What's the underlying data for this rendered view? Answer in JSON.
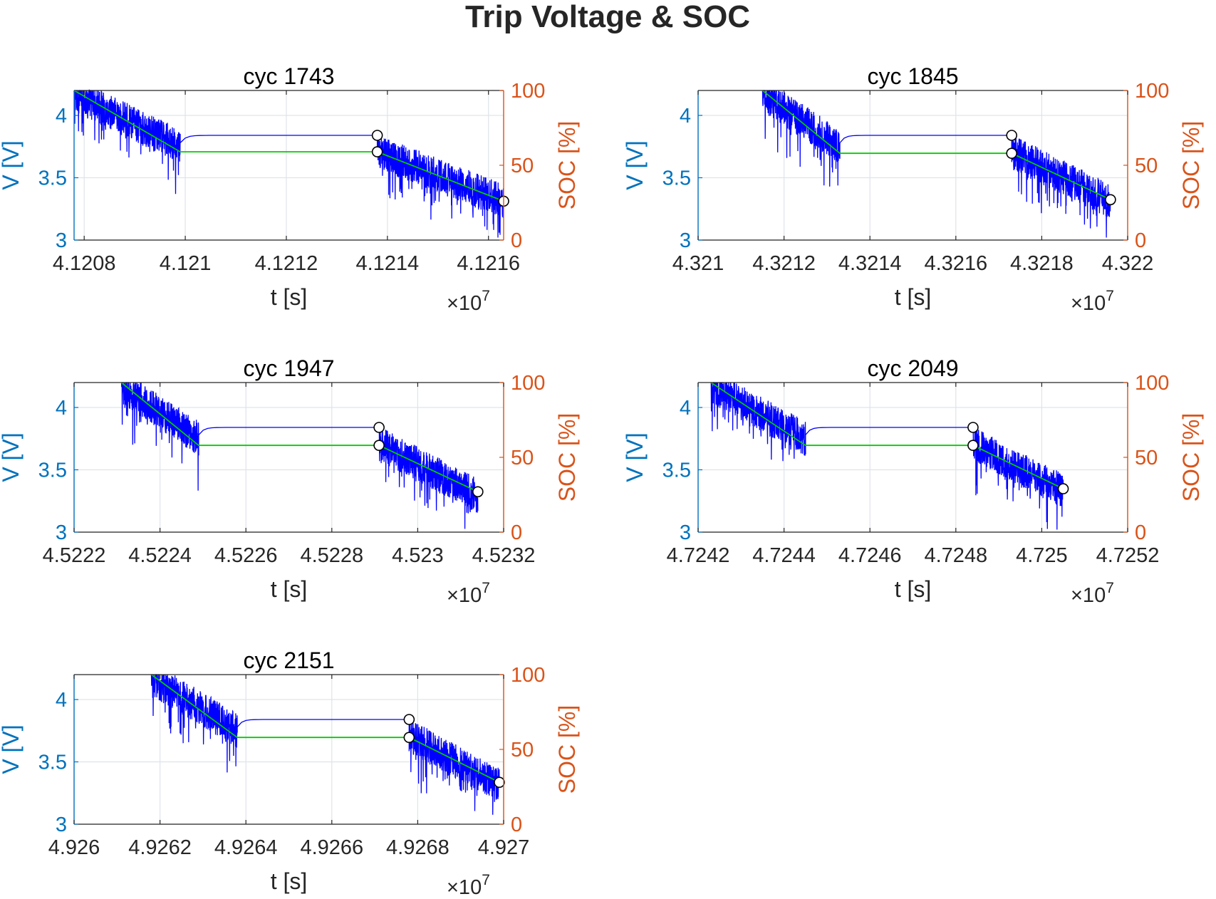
{
  "figure": {
    "title": "Trip Voltage & SOC"
  },
  "colors": {
    "voltage": "#0000ff",
    "soc": "#00cc00",
    "left_axis": "#0072bd",
    "right_axis": "#d95319",
    "grid": "#dfe3ea",
    "marker_fill": "#ffffff",
    "marker_edge": "#000000"
  },
  "chart_data": [
    {
      "type": "line",
      "title": "cyc 1743",
      "xlabel": "t [s]",
      "ylabel_left": "V [V]",
      "ylabel_right": "SOC [%]",
      "x_exponent": "×10",
      "x_exponent_power": "7",
      "xlim": [
        4.12078,
        4.12163
      ],
      "xticks": [
        4.1208,
        4.121,
        4.1212,
        4.1214,
        4.1216
      ],
      "xtick_labels": [
        "4.1208",
        "4.121",
        "4.1212",
        "4.1214",
        "4.1216"
      ],
      "ylim_left": [
        3,
        4.2
      ],
      "yticks_left": [
        3,
        3.5,
        4
      ],
      "ytick_labels_left": [
        "3",
        "3.5",
        "4"
      ],
      "ylim_right": [
        0,
        100
      ],
      "yticks_right": [
        0,
        50,
        100
      ],
      "ytick_labels_right": [
        "0",
        "50",
        "100"
      ],
      "grid": true,
      "segments": {
        "t_start": 4.12078,
        "t_drive1_end": 4.12099,
        "t_rest_end": 4.12138,
        "t_end": 4.12163,
        "v_start": 4.2,
        "v_drive1_end": 3.78,
        "v_rest_end": 3.84,
        "v_end": 3.34,
        "soc_start": 100,
        "soc_drive1_end": 59,
        "soc_end": 26
      },
      "markers": [
        {
          "axis": "left",
          "t": 4.12138,
          "value": 3.84
        },
        {
          "axis": "right",
          "t": 4.12138,
          "value": 59
        },
        {
          "axis": "right",
          "t": 4.12163,
          "value": 26
        }
      ]
    },
    {
      "type": "line",
      "title": "cyc 1845",
      "xlabel": "t [s]",
      "ylabel_left": "V [V]",
      "ylabel_right": "SOC [%]",
      "x_exponent": "×10",
      "x_exponent_power": "7",
      "xlim": [
        4.321,
        4.322
      ],
      "xticks": [
        4.321,
        4.3212,
        4.3214,
        4.3216,
        4.3218,
        4.322
      ],
      "xtick_labels": [
        "4.321",
        "4.3212",
        "4.3214",
        "4.3216",
        "4.3218",
        "4.322"
      ],
      "ylim_left": [
        3,
        4.2
      ],
      "yticks_left": [
        3,
        3.5,
        4
      ],
      "ytick_labels_left": [
        "3",
        "3.5",
        "4"
      ],
      "ylim_right": [
        0,
        100
      ],
      "yticks_right": [
        0,
        50,
        100
      ],
      "ytick_labels_right": [
        "0",
        "50",
        "100"
      ],
      "grid": true,
      "segments": {
        "t_start": 4.32115,
        "t_drive1_end": 4.32133,
        "t_rest_end": 4.32173,
        "t_end": 4.32196,
        "v_start": 4.2,
        "v_drive1_end": 3.78,
        "v_rest_end": 3.84,
        "v_end": 3.34,
        "soc_start": 100,
        "soc_drive1_end": 58,
        "soc_end": 27
      },
      "markers": [
        {
          "axis": "left",
          "t": 4.32173,
          "value": 3.84
        },
        {
          "axis": "right",
          "t": 4.32173,
          "value": 58
        },
        {
          "axis": "right",
          "t": 4.32196,
          "value": 27
        }
      ]
    },
    {
      "type": "line",
      "title": "cyc 1947",
      "xlabel": "t [s]",
      "ylabel_left": "V [V]",
      "ylabel_right": "SOC [%]",
      "x_exponent": "×10",
      "x_exponent_power": "7",
      "xlim": [
        4.5222,
        4.5232
      ],
      "xticks": [
        4.5222,
        4.5224,
        4.5226,
        4.5228,
        4.523,
        4.5232
      ],
      "xtick_labels": [
        "4.5222",
        "4.5224",
        "4.5226",
        "4.5228",
        "4.523",
        "4.5232"
      ],
      "ylim_left": [
        3,
        4.2
      ],
      "yticks_left": [
        3,
        3.5,
        4
      ],
      "ytick_labels_left": [
        "3",
        "3.5",
        "4"
      ],
      "ylim_right": [
        0,
        100
      ],
      "yticks_right": [
        0,
        50,
        100
      ],
      "ytick_labels_right": [
        "0",
        "50",
        "100"
      ],
      "grid": true,
      "segments": {
        "t_start": 4.52231,
        "t_drive1_end": 4.52249,
        "t_rest_end": 4.52291,
        "t_end": 4.52314,
        "v_start": 4.2,
        "v_drive1_end": 3.78,
        "v_rest_end": 3.84,
        "v_end": 3.32,
        "soc_start": 100,
        "soc_drive1_end": 58,
        "soc_end": 27
      },
      "markers": [
        {
          "axis": "left",
          "t": 4.52291,
          "value": 3.84
        },
        {
          "axis": "right",
          "t": 4.52291,
          "value": 58
        },
        {
          "axis": "right",
          "t": 4.52314,
          "value": 27
        }
      ]
    },
    {
      "type": "line",
      "title": "cyc 2049",
      "xlabel": "t [s]",
      "ylabel_left": "V [V]",
      "ylabel_right": "SOC [%]",
      "x_exponent": "×10",
      "x_exponent_power": "7",
      "xlim": [
        4.7242,
        4.7252
      ],
      "xticks": [
        4.7242,
        4.7244,
        4.7246,
        4.7248,
        4.725,
        4.7252
      ],
      "xtick_labels": [
        "4.7242",
        "4.7244",
        "4.7246",
        "4.7248",
        "4.725",
        "4.7252"
      ],
      "ylim_left": [
        3,
        4.2
      ],
      "yticks_left": [
        3,
        3.5,
        4
      ],
      "ytick_labels_left": [
        "3",
        "3.5",
        "4"
      ],
      "ylim_right": [
        0,
        100
      ],
      "yticks_right": [
        0,
        50,
        100
      ],
      "ytick_labels_right": [
        "0",
        "50",
        "100"
      ],
      "grid": true,
      "segments": {
        "t_start": 4.72423,
        "t_drive1_end": 4.72445,
        "t_rest_end": 4.72484,
        "t_end": 4.72505,
        "v_start": 4.2,
        "v_drive1_end": 3.78,
        "v_rest_end": 3.84,
        "v_end": 3.36,
        "soc_start": 100,
        "soc_drive1_end": 58,
        "soc_end": 29
      },
      "markers": [
        {
          "axis": "left",
          "t": 4.72484,
          "value": 3.84
        },
        {
          "axis": "right",
          "t": 4.72484,
          "value": 58
        },
        {
          "axis": "right",
          "t": 4.72505,
          "value": 29
        }
      ]
    },
    {
      "type": "line",
      "title": "cyc 2151",
      "xlabel": "t [s]",
      "ylabel_left": "V [V]",
      "ylabel_right": "SOC [%]",
      "x_exponent": "×10",
      "x_exponent_power": "7",
      "xlim": [
        4.926,
        4.927
      ],
      "xticks": [
        4.926,
        4.9262,
        4.9264,
        4.9266,
        4.9268,
        4.927
      ],
      "xtick_labels": [
        "4.926",
        "4.9262",
        "4.9264",
        "4.9266",
        "4.9268",
        "4.927"
      ],
      "ylim_left": [
        3,
        4.2
      ],
      "yticks_left": [
        3,
        3.5,
        4
      ],
      "ytick_labels_left": [
        "3",
        "3.5",
        "4"
      ],
      "ylim_right": [
        0,
        100
      ],
      "yticks_right": [
        0,
        50,
        100
      ],
      "ytick_labels_right": [
        "0",
        "50",
        "100"
      ],
      "grid": true,
      "segments": {
        "t_start": 4.92618,
        "t_drive1_end": 4.92638,
        "t_rest_end": 4.92678,
        "t_end": 4.92699,
        "v_start": 4.2,
        "v_drive1_end": 3.78,
        "v_rest_end": 3.84,
        "v_end": 3.34,
        "soc_start": 100,
        "soc_drive1_end": 58,
        "soc_end": 28
      },
      "markers": [
        {
          "axis": "left",
          "t": 4.92678,
          "value": 3.84
        },
        {
          "axis": "right",
          "t": 4.92678,
          "value": 58
        },
        {
          "axis": "right",
          "t": 4.92699,
          "value": 28
        }
      ]
    }
  ]
}
